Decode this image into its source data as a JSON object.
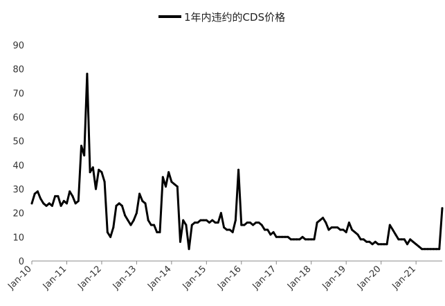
{
  "chart_data": {
    "type": "line",
    "title": "",
    "xlabel": "",
    "ylabel": "",
    "ylim": [
      0,
      90
    ],
    "yticks": [
      0,
      10,
      20,
      30,
      40,
      50,
      60,
      70,
      80,
      90
    ],
    "xticks": [
      "Jan-10",
      "Jan-11",
      "Jan-12",
      "Jan-13",
      "Jan-14",
      "Jan-15",
      "Jan-16",
      "Jan-17",
      "Jan-18",
      "Jan-19",
      "Jan-20",
      "Jan-21"
    ],
    "grid": false,
    "legend_position": "top",
    "colors": {
      "series": "#000000",
      "axis": "#888888"
    },
    "series": [
      {
        "name": "1年内违约的CDS价格",
        "x": [
          "2010-01",
          "2010-02",
          "2010-03",
          "2010-04",
          "2010-05",
          "2010-06",
          "2010-07",
          "2010-08",
          "2010-09",
          "2010-10",
          "2010-11",
          "2010-12",
          "2011-01",
          "2011-02",
          "2011-03",
          "2011-04",
          "2011-05",
          "2011-06",
          "2011-07",
          "2011-08",
          "2011-09",
          "2011-10",
          "2011-11",
          "2011-12",
          "2012-01",
          "2012-02",
          "2012-03",
          "2012-04",
          "2012-05",
          "2012-06",
          "2012-07",
          "2012-08",
          "2012-09",
          "2012-10",
          "2012-11",
          "2012-12",
          "2013-01",
          "2013-02",
          "2013-03",
          "2013-04",
          "2013-05",
          "2013-06",
          "2013-07",
          "2013-08",
          "2013-09",
          "2013-10",
          "2013-11",
          "2013-12",
          "2014-01",
          "2014-02",
          "2014-03",
          "2014-04",
          "2014-05",
          "2014-06",
          "2014-07",
          "2014-08",
          "2014-09",
          "2014-10",
          "2014-11",
          "2014-12",
          "2015-01",
          "2015-02",
          "2015-03",
          "2015-04",
          "2015-05",
          "2015-06",
          "2015-07",
          "2015-08",
          "2015-09",
          "2015-10",
          "2015-11",
          "2015-12",
          "2016-01",
          "2016-02",
          "2016-03",
          "2016-04",
          "2016-05",
          "2016-06",
          "2016-07",
          "2016-08",
          "2016-09",
          "2016-10",
          "2016-11",
          "2016-12",
          "2017-01",
          "2017-02",
          "2017-03",
          "2017-04",
          "2017-05",
          "2017-06",
          "2017-07",
          "2017-08",
          "2017-09",
          "2017-10",
          "2017-11",
          "2017-12",
          "2018-01",
          "2018-02",
          "2018-03",
          "2018-04",
          "2018-05",
          "2018-06",
          "2018-07",
          "2018-08",
          "2018-09",
          "2018-10",
          "2018-11",
          "2018-12",
          "2019-01",
          "2019-02",
          "2019-03",
          "2019-04",
          "2019-05",
          "2019-06",
          "2019-07",
          "2019-08",
          "2019-09",
          "2019-10",
          "2019-11",
          "2019-12",
          "2020-01",
          "2020-02",
          "2020-03",
          "2020-04",
          "2020-05",
          "2020-06",
          "2020-07",
          "2020-08",
          "2020-09",
          "2020-10",
          "2020-11",
          "2020-12",
          "2021-01",
          "2021-02",
          "2021-03",
          "2021-04",
          "2021-05",
          "2021-06",
          "2021-07",
          "2021-08",
          "2021-09",
          "2021-10"
        ],
        "values": [
          24,
          28,
          29,
          26,
          24,
          23,
          24,
          23,
          27,
          27,
          23,
          25,
          24,
          29,
          27,
          24,
          25,
          48,
          44,
          78,
          37,
          39,
          30,
          38,
          37,
          33,
          12,
          10,
          14,
          23,
          24,
          23,
          19,
          17,
          15,
          17,
          20,
          28,
          25,
          24,
          17,
          15,
          15,
          12,
          12,
          35,
          31,
          37,
          33,
          32,
          31,
          8,
          17,
          15,
          5,
          15,
          16,
          16,
          17,
          17,
          17,
          16,
          17,
          16,
          16,
          20,
          14,
          13,
          13,
          12,
          17,
          38,
          15,
          15,
          16,
          16,
          15,
          16,
          16,
          15,
          13,
          13,
          11,
          12,
          10,
          10,
          10,
          10,
          10,
          9,
          9,
          9,
          9,
          10,
          9,
          9,
          9,
          9,
          16,
          17,
          18,
          16,
          13,
          14,
          14,
          14,
          13,
          13,
          12,
          16,
          13,
          12,
          11,
          9,
          9,
          8,
          8,
          7,
          8,
          7,
          7,
          7,
          7,
          15,
          13,
          11,
          9,
          9,
          9,
          7,
          9,
          8,
          7,
          6,
          5,
          5,
          5,
          5,
          5,
          5,
          5,
          22
        ]
      }
    ]
  }
}
